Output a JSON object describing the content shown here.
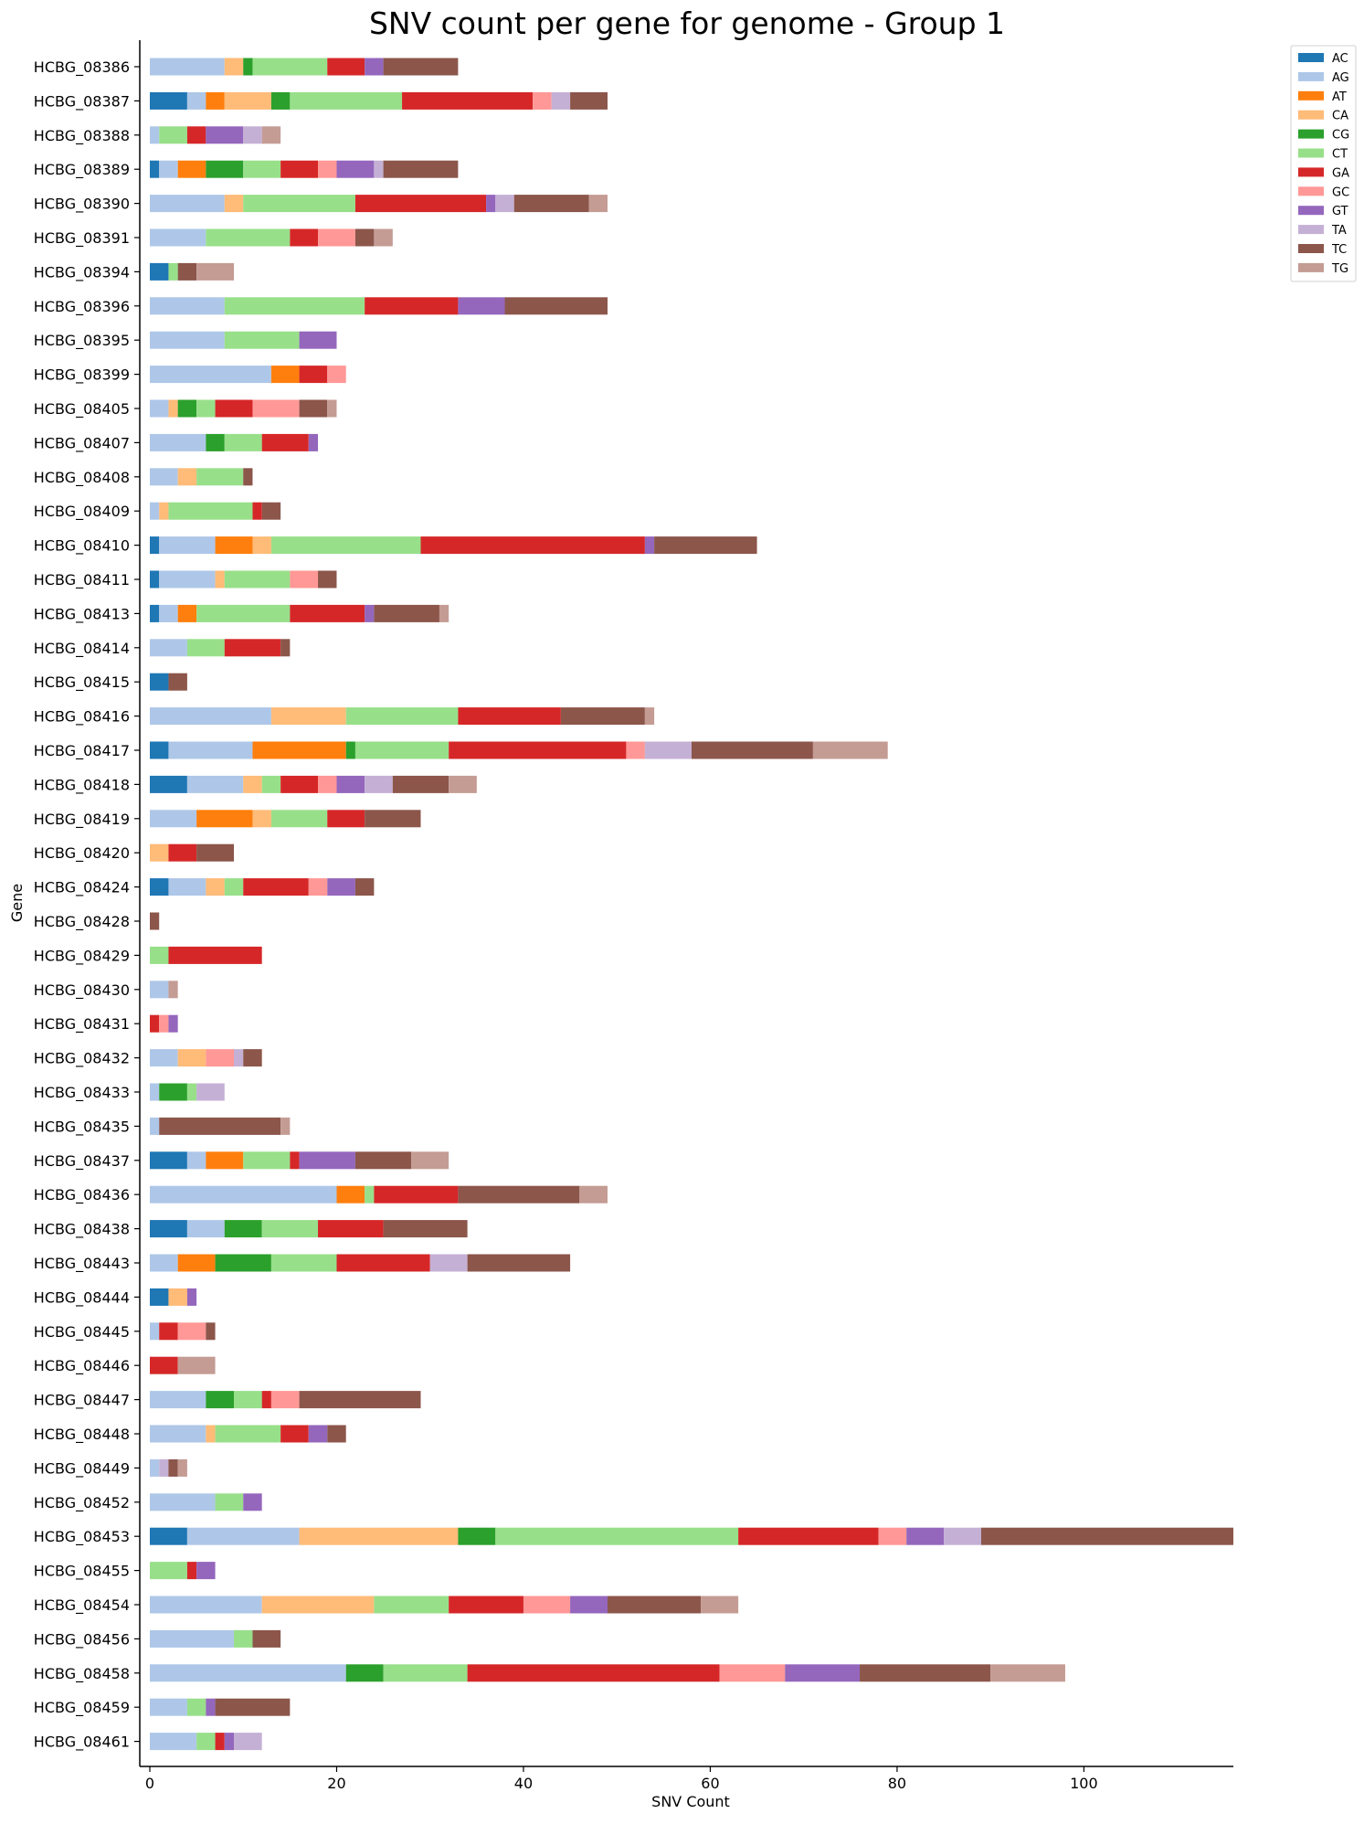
{
  "chart_data": {
    "type": "bar",
    "orientation": "horizontal",
    "stacked": true,
    "title": "SNV count per gene for genome - Group 1",
    "xlabel": "SNV Count",
    "ylabel": "Gene",
    "xlim": [
      0,
      116
    ],
    "xticks": [
      "0",
      "20",
      "40",
      "60",
      "80",
      "100"
    ],
    "legend_position": "top-right",
    "grid": false,
    "categories": [
      "HCBG_08386",
      "HCBG_08387",
      "HCBG_08388",
      "HCBG_08389",
      "HCBG_08390",
      "HCBG_08391",
      "HCBG_08394",
      "HCBG_08396",
      "HCBG_08395",
      "HCBG_08399",
      "HCBG_08405",
      "HCBG_08407",
      "HCBG_08408",
      "HCBG_08409",
      "HCBG_08410",
      "HCBG_08411",
      "HCBG_08413",
      "HCBG_08414",
      "HCBG_08415",
      "HCBG_08416",
      "HCBG_08417",
      "HCBG_08418",
      "HCBG_08419",
      "HCBG_08420",
      "HCBG_08424",
      "HCBG_08428",
      "HCBG_08429",
      "HCBG_08430",
      "HCBG_08431",
      "HCBG_08432",
      "HCBG_08433",
      "HCBG_08435",
      "HCBG_08437",
      "HCBG_08436",
      "HCBG_08438",
      "HCBG_08443",
      "HCBG_08444",
      "HCBG_08445",
      "HCBG_08446",
      "HCBG_08447",
      "HCBG_08448",
      "HCBG_08449",
      "HCBG_08452",
      "HCBG_08453",
      "HCBG_08455",
      "HCBG_08454",
      "HCBG_08456",
      "HCBG_08458",
      "HCBG_08459",
      "HCBG_08461"
    ],
    "series": [
      {
        "name": "AC",
        "color": "#1f77b4",
        "values": [
          0,
          4,
          0,
          1,
          0,
          0,
          2,
          0,
          0,
          0,
          0,
          0,
          0,
          0,
          1,
          1,
          1,
          0,
          2,
          0,
          2,
          4,
          0,
          0,
          2,
          0,
          0,
          0,
          0,
          0,
          0,
          0,
          4,
          0,
          4,
          0,
          2,
          0,
          0,
          0,
          0,
          0,
          0,
          4,
          0,
          0,
          0,
          0,
          0,
          0
        ]
      },
      {
        "name": "AG",
        "color": "#aec7e8",
        "values": [
          8,
          2,
          1,
          2,
          8,
          6,
          0,
          8,
          8,
          13,
          2,
          6,
          3,
          1,
          6,
          6,
          2,
          4,
          0,
          13,
          9,
          6,
          5,
          0,
          4,
          0,
          0,
          2,
          0,
          3,
          1,
          1,
          2,
          20,
          4,
          3,
          0,
          1,
          0,
          6,
          6,
          1,
          7,
          12,
          0,
          12,
          9,
          21,
          4,
          5
        ]
      },
      {
        "name": "AT",
        "color": "#ff7f0e",
        "values": [
          0,
          2,
          0,
          3,
          0,
          0,
          0,
          0,
          0,
          3,
          0,
          0,
          0,
          0,
          4,
          0,
          2,
          0,
          0,
          0,
          10,
          0,
          6,
          0,
          0,
          0,
          0,
          0,
          0,
          0,
          0,
          0,
          4,
          3,
          0,
          4,
          0,
          0,
          0,
          0,
          0,
          0,
          0,
          0,
          0,
          0,
          0,
          0,
          0,
          0
        ]
      },
      {
        "name": "CA",
        "color": "#ffbb78",
        "values": [
          2,
          5,
          0,
          0,
          2,
          0,
          0,
          0,
          0,
          0,
          1,
          0,
          2,
          1,
          2,
          1,
          0,
          0,
          0,
          8,
          0,
          2,
          2,
          2,
          2,
          0,
          0,
          0,
          0,
          3,
          0,
          0,
          0,
          0,
          0,
          0,
          2,
          0,
          0,
          0,
          1,
          0,
          0,
          17,
          0,
          12,
          0,
          0,
          0,
          0
        ]
      },
      {
        "name": "CG",
        "color": "#2ca02c",
        "values": [
          1,
          2,
          0,
          4,
          0,
          0,
          0,
          0,
          0,
          0,
          2,
          2,
          0,
          0,
          0,
          0,
          0,
          0,
          0,
          0,
          1,
          0,
          0,
          0,
          0,
          0,
          0,
          0,
          0,
          0,
          3,
          0,
          0,
          0,
          4,
          6,
          0,
          0,
          0,
          3,
          0,
          0,
          0,
          4,
          0,
          0,
          0,
          4,
          0,
          0
        ]
      },
      {
        "name": "CT",
        "color": "#98df8a",
        "values": [
          8,
          12,
          3,
          4,
          12,
          9,
          1,
          15,
          8,
          0,
          2,
          4,
          5,
          9,
          16,
          7,
          10,
          4,
          0,
          12,
          10,
          2,
          6,
          0,
          2,
          0,
          2,
          0,
          0,
          0,
          1,
          0,
          5,
          1,
          6,
          7,
          0,
          0,
          0,
          3,
          7,
          0,
          3,
          26,
          4,
          8,
          2,
          9,
          2,
          2
        ]
      },
      {
        "name": "GA",
        "color": "#d62728",
        "values": [
          4,
          14,
          2,
          4,
          14,
          3,
          0,
          10,
          0,
          3,
          4,
          5,
          0,
          1,
          24,
          0,
          8,
          6,
          0,
          11,
          19,
          4,
          4,
          3,
          7,
          0,
          10,
          0,
          1,
          0,
          0,
          0,
          1,
          9,
          7,
          10,
          0,
          2,
          3,
          1,
          3,
          0,
          0,
          15,
          1,
          8,
          0,
          27,
          0,
          1
        ]
      },
      {
        "name": "GC",
        "color": "#ff9896",
        "values": [
          0,
          2,
          0,
          2,
          0,
          4,
          0,
          0,
          0,
          2,
          5,
          0,
          0,
          0,
          0,
          3,
          0,
          0,
          0,
          0,
          2,
          2,
          0,
          0,
          2,
          0,
          0,
          0,
          1,
          3,
          0,
          0,
          0,
          0,
          0,
          0,
          0,
          3,
          0,
          3,
          0,
          0,
          0,
          3,
          0,
          5,
          0,
          7,
          0,
          0
        ]
      },
      {
        "name": "GT",
        "color": "#9467bd",
        "values": [
          2,
          0,
          4,
          4,
          1,
          0,
          0,
          5,
          4,
          0,
          0,
          1,
          0,
          0,
          1,
          0,
          1,
          0,
          0,
          0,
          0,
          3,
          0,
          0,
          3,
          0,
          0,
          0,
          1,
          0,
          0,
          0,
          6,
          0,
          0,
          0,
          1,
          0,
          0,
          0,
          2,
          0,
          2,
          4,
          2,
          4,
          0,
          8,
          1,
          1
        ]
      },
      {
        "name": "TA",
        "color": "#c5b0d5",
        "values": [
          0,
          2,
          2,
          1,
          2,
          0,
          0,
          0,
          0,
          0,
          0,
          0,
          0,
          0,
          0,
          0,
          0,
          0,
          0,
          0,
          5,
          3,
          0,
          0,
          0,
          0,
          0,
          0,
          0,
          1,
          3,
          0,
          0,
          0,
          0,
          4,
          0,
          0,
          0,
          0,
          0,
          1,
          0,
          4,
          0,
          0,
          0,
          0,
          0,
          3
        ]
      },
      {
        "name": "TC",
        "color": "#8c564b",
        "values": [
          8,
          4,
          0,
          8,
          8,
          2,
          2,
          11,
          0,
          0,
          3,
          0,
          1,
          2,
          11,
          2,
          7,
          1,
          2,
          9,
          13,
          6,
          6,
          4,
          2,
          1,
          0,
          0,
          0,
          2,
          0,
          13,
          6,
          13,
          9,
          11,
          0,
          1,
          0,
          13,
          2,
          1,
          0,
          27,
          0,
          10,
          3,
          14,
          8,
          0
        ]
      },
      {
        "name": "TG",
        "color": "#c49c94",
        "values": [
          0,
          0,
          2,
          0,
          2,
          2,
          4,
          0,
          0,
          0,
          1,
          0,
          0,
          0,
          0,
          0,
          1,
          0,
          0,
          1,
          8,
          3,
          0,
          0,
          0,
          0,
          0,
          1,
          0,
          0,
          0,
          1,
          4,
          3,
          0,
          0,
          0,
          0,
          4,
          0,
          0,
          1,
          0,
          0,
          0,
          4,
          0,
          8,
          0,
          0
        ]
      }
    ]
  }
}
